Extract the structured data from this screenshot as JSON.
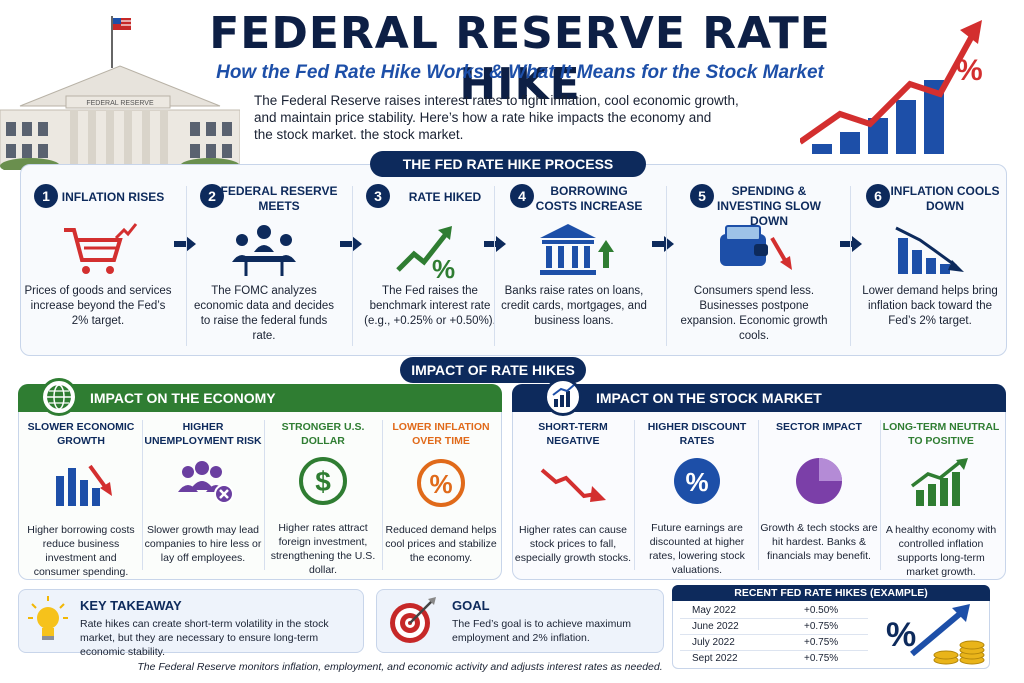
{
  "header": {
    "title": "FEDERAL RESERVE RATE HIKE",
    "subtitle": "How the Fed Rate Hike Works & What It Means for the Stock Market",
    "intro_lines": [
      "The Federal Reserve raises interest rates to fight inflation, cool economic growth,",
      "and maintain price stability. Here’s how a rate hike impacts the economy and",
      "the stock market.                    the stock market."
    ],
    "building_sign": "FEDERAL RESERVE",
    "chart_symbol": "%"
  },
  "process": {
    "title": "THE FED RATE HIKE PROCESS",
    "steps": [
      {
        "num": "1",
        "title": "INFLATION RISES",
        "icon": "shopping-cart-icon",
        "desc": "Prices of goods and services increase beyond the Fed’s 2% target."
      },
      {
        "num": "2",
        "title": "FEDERAL RESERVE MEETS",
        "icon": "meeting-icon",
        "desc": "The FOMC analyzes economic data and decides to raise the federal funds rate."
      },
      {
        "num": "3",
        "title": "RATE HIKED",
        "icon": "rate-up-icon",
        "desc": "The Fed raises the benchmark interest rate (e.g., +0.25% or +0.50%)."
      },
      {
        "num": "4",
        "title": "BORROWING COSTS INCREASE",
        "icon": "bank-icon",
        "desc": "Banks raise rates on loans, credit cards, mortgages, and business loans."
      },
      {
        "num": "5",
        "title": "SPENDING & INVESTING SLOW DOWN",
        "icon": "wallet-icon",
        "desc": "Consumers spend less. Businesses postpone expansion. Economic growth cools."
      },
      {
        "num": "6",
        "title": "INFLATION COOLS DOWN",
        "icon": "chart-down-icon",
        "desc": "Lower demand helps bring inflation back toward the Fed’s 2% target."
      }
    ],
    "rate_symbol": "%"
  },
  "impact": {
    "title": "IMPACT OF RATE HIKES",
    "economy": {
      "title": "IMPACT ON THE ECONOMY",
      "items": [
        {
          "title": "SLOWER ECONOMIC GROWTH",
          "color": "#0d2a5c",
          "desc": "Higher borrowing costs reduce business investment and consumer spending."
        },
        {
          "title": "HIGHER UNEMPLOYMENT RISK",
          "color": "#0d2a5c",
          "desc": "Slower growth may lead companies to hire less or lay off employees."
        },
        {
          "title": "STRONGER U.S. DOLLAR",
          "color": "#2f7d32",
          "desc": "Higher rates attract foreign investment, strengthening the U.S. dollar."
        },
        {
          "title": "LOWER INFLATION OVER TIME",
          "color": "#e06a1a",
          "desc": "Reduced demand helps cool prices and stabilize the economy."
        }
      ]
    },
    "stock": {
      "title": "IMPACT ON THE STOCK MARKET",
      "items": [
        {
          "title": "SHORT-TERM NEGATIVE",
          "color": "#0d2a5c",
          "desc": "Higher rates can cause stock prices to fall, especially growth stocks."
        },
        {
          "title": "HIGHER DISCOUNT RATES",
          "color": "#0d2a5c",
          "desc": "Future earnings are discounted at higher rates, lowering stock valuations."
        },
        {
          "title": "SECTOR IMPACT",
          "color": "#0d2a5c",
          "desc": "Growth & tech stocks are hit hardest. Banks & financials may benefit."
        },
        {
          "title": "LONG-TERM NEUTRAL TO POSITIVE",
          "color": "#2f7d32",
          "desc": "A healthy economy with controlled inflation supports long-term market growth."
        }
      ]
    },
    "dollar_symbol": "$",
    "percent_symbol": "%"
  },
  "takeaway": {
    "title": "KEY TAKEAWAY",
    "text": "Rate hikes can create short-term volatility in the stock market, but they are necessary to ensure long-term economic stability."
  },
  "goal": {
    "title": "GOAL",
    "text": "The Fed’s goal is to achieve maximum employment and 2% inflation."
  },
  "table": {
    "title": "RECENT FED RATE HIKES (EXAMPLE)",
    "rows": [
      {
        "date": "May 2022",
        "change": "+0.50%"
      },
      {
        "date": "June 2022",
        "change": "+0.75%"
      },
      {
        "date": "July 2022",
        "change": "+0.75%"
      },
      {
        "date": "Sept 2022",
        "change": "+0.75%"
      }
    ],
    "symbol": "%"
  },
  "footer": "The Federal Reserve monitors inflation, employment, and economic activity and adjusts interest rates as needed."
}
